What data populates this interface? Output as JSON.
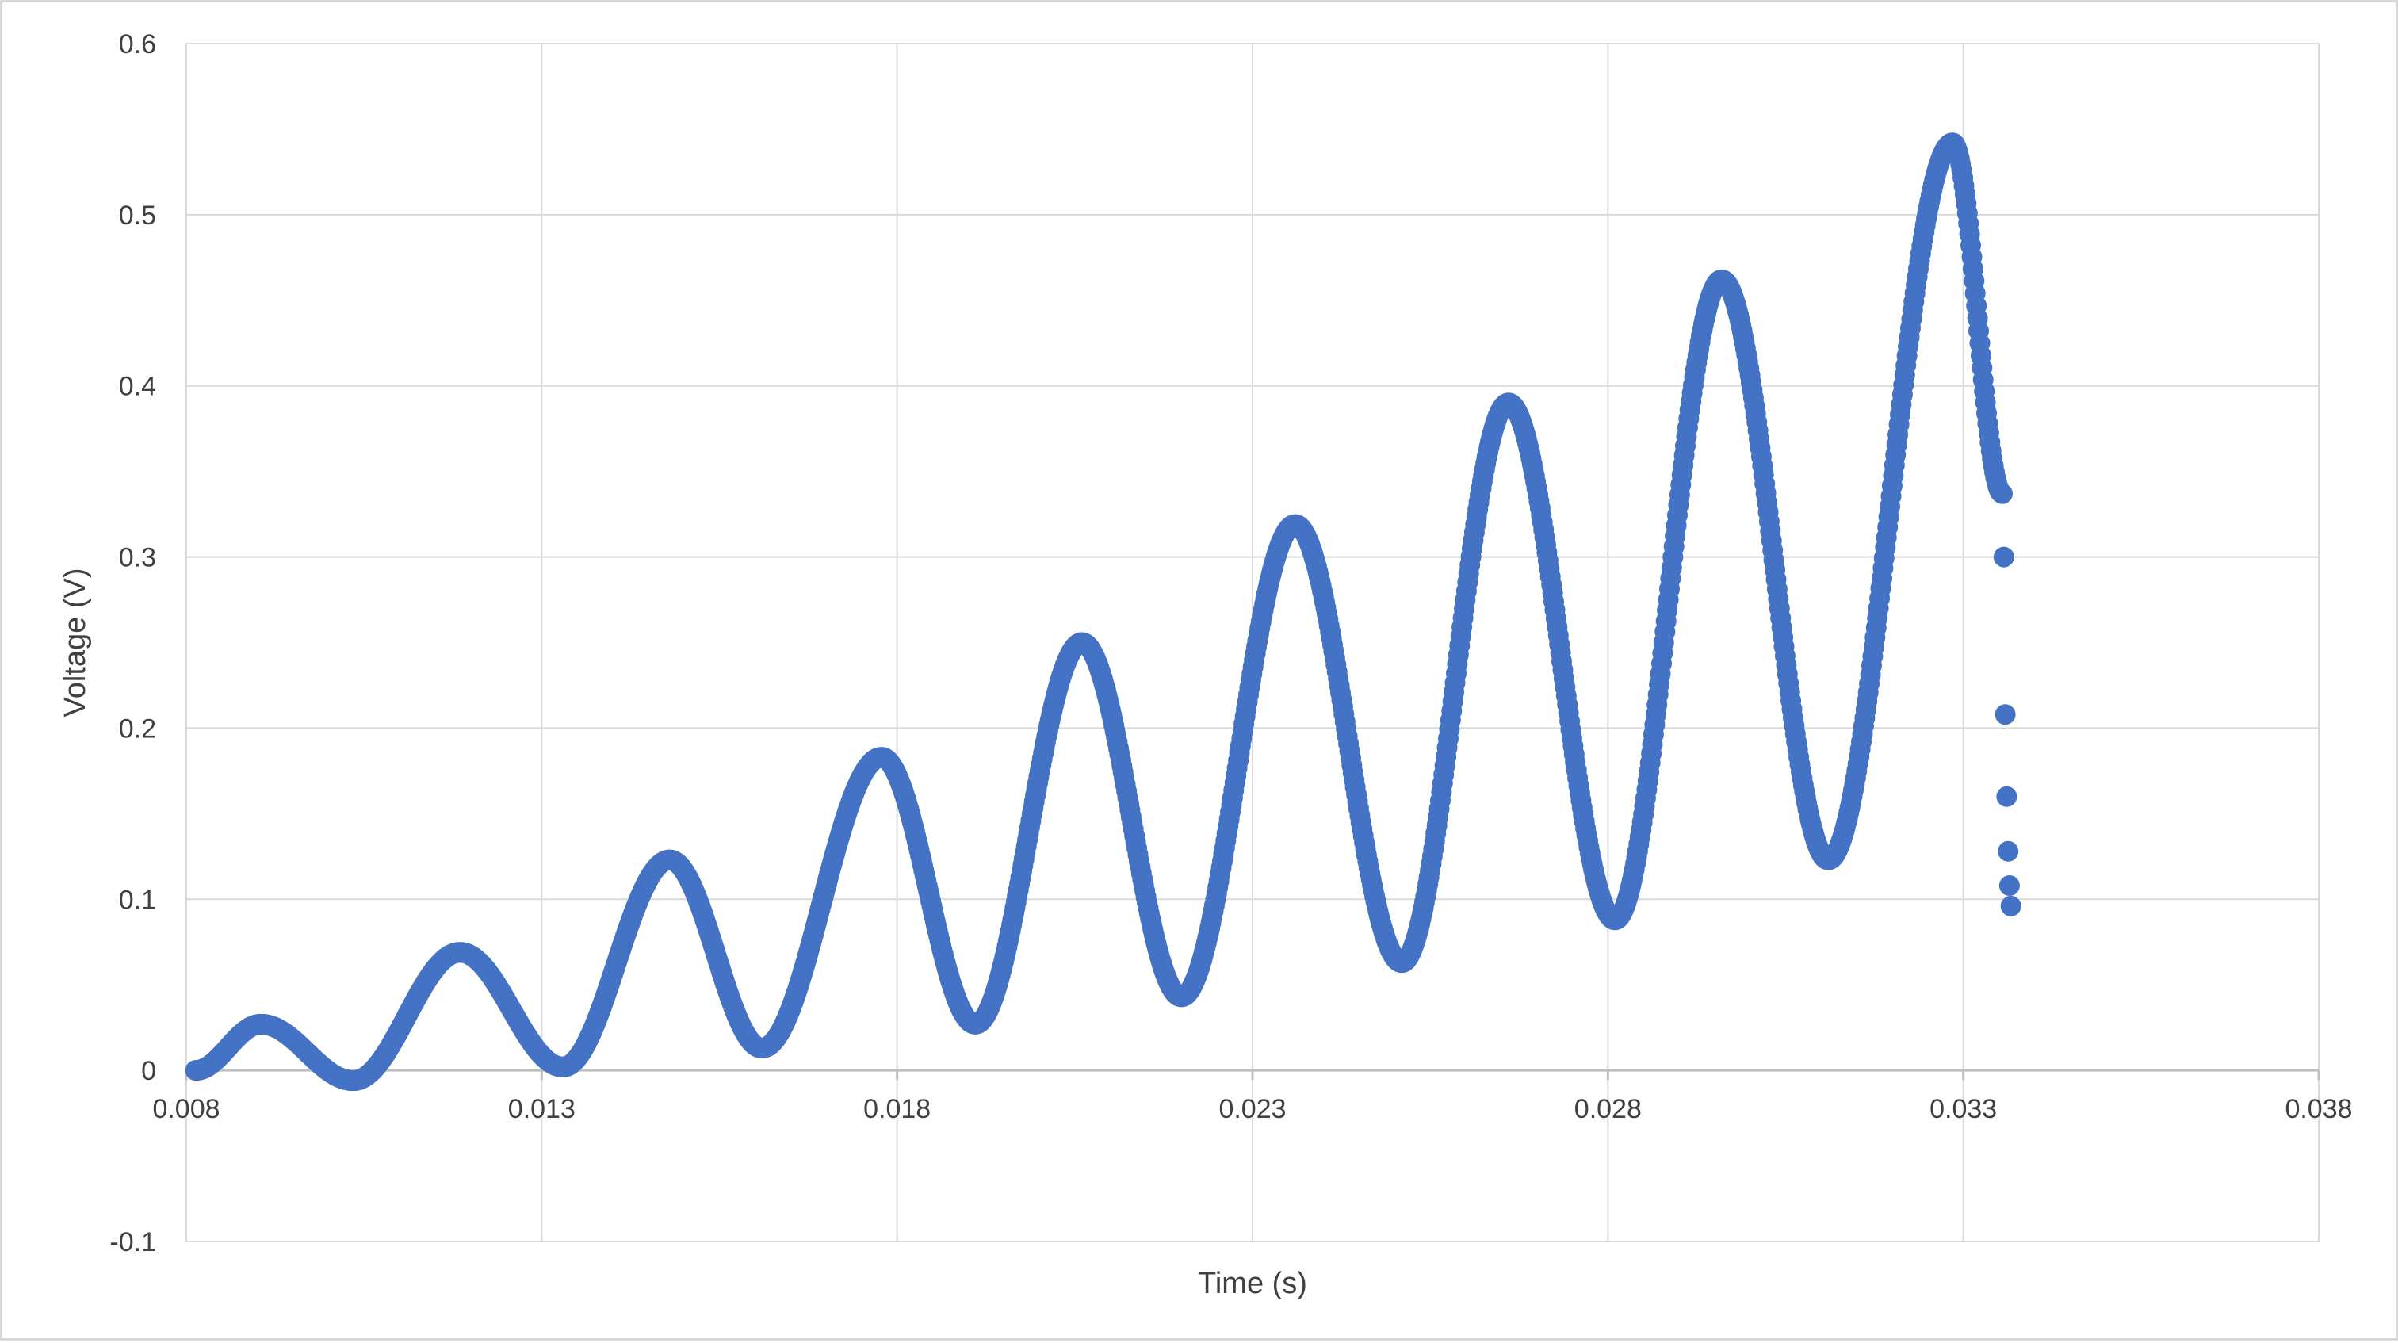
{
  "chart_data": {
    "type": "scatter",
    "title": "",
    "xlabel": "Time (s)",
    "ylabel": "Voltage (V)",
    "xlim": [
      0.008,
      0.038
    ],
    "ylim": [
      -0.1,
      0.6
    ],
    "x_ticks": [
      0.008,
      0.013,
      0.018,
      0.023,
      0.028,
      0.033,
      0.038
    ],
    "y_ticks": [
      -0.1,
      0,
      0.1,
      0.2,
      0.3,
      0.4,
      0.5,
      0.6
    ],
    "x_tick_labels": [
      "0.008",
      "0.013",
      "0.018",
      "0.023",
      "0.028",
      "0.033",
      "0.038"
    ],
    "y_tick_labels": [
      "-0.1",
      "0",
      "0.1",
      "0.2",
      "0.3",
      "0.4",
      "0.5",
      "0.6"
    ],
    "grid": true,
    "legend": "none",
    "marker_color": "#4472c4",
    "series": [
      {
        "extrema": [
          [
            0.00813,
            0.0
          ],
          [
            0.00905,
            0.027
          ],
          [
            0.01035,
            -0.006
          ],
          [
            0.01185,
            0.069
          ],
          [
            0.0133,
            0.002
          ],
          [
            0.0148,
            0.123
          ],
          [
            0.0161,
            0.013
          ],
          [
            0.01778,
            0.183
          ],
          [
            0.0191,
            0.027
          ],
          [
            0.0206,
            0.25
          ],
          [
            0.022,
            0.043
          ],
          [
            0.0236,
            0.319
          ],
          [
            0.0251,
            0.063
          ],
          [
            0.0266,
            0.39
          ],
          [
            0.0281,
            0.088
          ],
          [
            0.0296,
            0.462
          ],
          [
            0.0311,
            0.123
          ],
          [
            0.03285,
            0.542
          ],
          [
            0.03355,
            0.337
          ]
        ],
        "tail_points": [
          [
            0.03357,
            0.3
          ],
          [
            0.03359,
            0.208
          ],
          [
            0.03361,
            0.16
          ],
          [
            0.03363,
            0.128
          ],
          [
            0.03365,
            0.108
          ],
          [
            0.03367,
            0.096
          ]
        ]
      }
    ]
  }
}
